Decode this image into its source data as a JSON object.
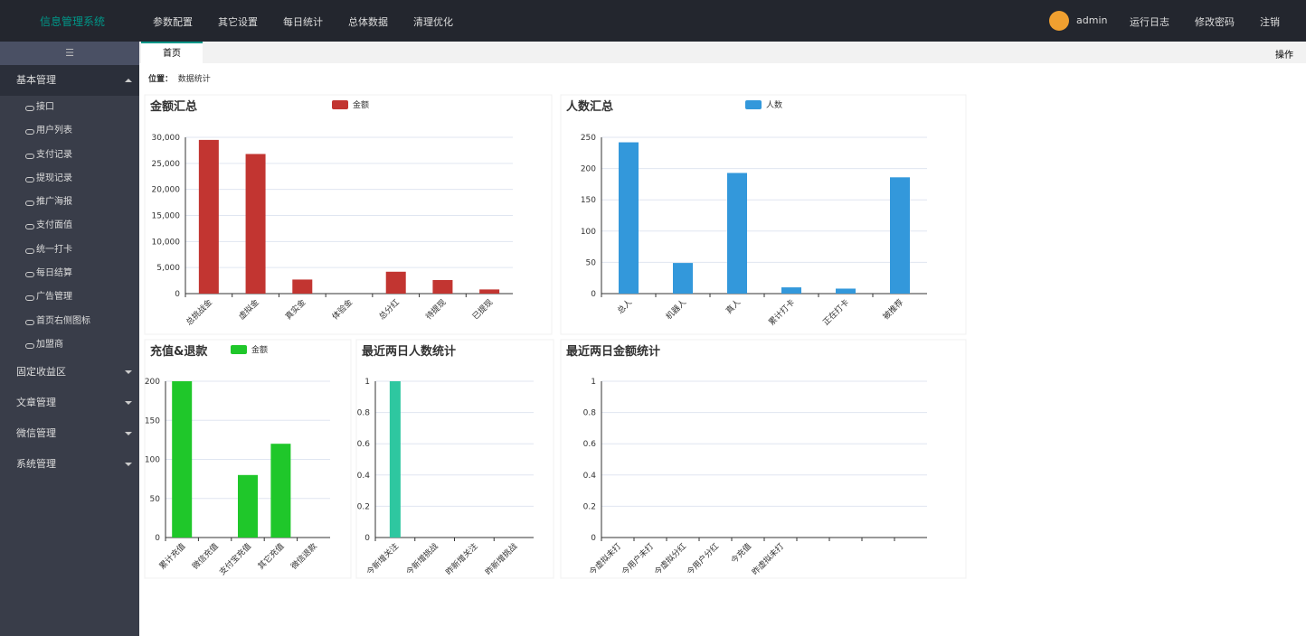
{
  "header": {
    "title": "信息管理系统",
    "nav": [
      "参数配置",
      "其它设置",
      "每日统计",
      "总体数据",
      "清理优化"
    ],
    "user": "admin",
    "links": [
      "运行日志",
      "修改密码",
      "注销"
    ]
  },
  "sidebar": {
    "groups": [
      {
        "title": "基本管理",
        "items": [
          "接口",
          "用户列表",
          "支付记录",
          "提现记录",
          "推广海报",
          "支付面值",
          "统一打卡",
          "每日结算",
          "广告管理",
          "首页右侧图标",
          "加盟商"
        ]
      },
      {
        "title": "固定收益区"
      },
      {
        "title": "文章管理"
      },
      {
        "title": "微信管理"
      },
      {
        "title": "系统管理"
      }
    ]
  },
  "tabs": {
    "active": "首页",
    "action": "操作"
  },
  "breadcrumb": {
    "label": "位置：",
    "current": "数据统计"
  },
  "chart_data": [
    {
      "type": "bar",
      "title": "金额汇总",
      "categories": [
        "总挑战金",
        "虚拟金",
        "真实金",
        "体验金",
        "总分红",
        "待提现",
        "已提现"
      ],
      "series": [
        {
          "name": "金额",
          "color": "#c23531",
          "values": [
            29500,
            26800,
            2700,
            0,
            4200,
            2600,
            800
          ]
        }
      ],
      "ylim": [
        0,
        30000
      ],
      "yticks": [
        0,
        {
          "value": 5000,
          "label": "5,000"
        },
        {
          "value": 10000,
          "label": "10,000"
        },
        {
          "value": 15000,
          "label": "15,000"
        },
        {
          "value": 20000,
          "label": "20,000"
        },
        {
          "value": 25000,
          "label": "25,000"
        },
        {
          "value": 30000,
          "label": "30,000"
        }
      ],
      "grid": true
    },
    {
      "type": "bar",
      "title": "人数汇总",
      "categories": [
        "总人",
        "机器人",
        "真人",
        "累计打卡",
        "正在打卡",
        "被推荐"
      ],
      "series": [
        {
          "name": "人数",
          "color": "#3398db",
          "values": [
            242,
            49,
            193,
            10,
            8,
            186
          ]
        }
      ],
      "ylim": [
        0,
        250
      ],
      "yticks": [
        0,
        50,
        100,
        150,
        200,
        250
      ],
      "grid": true
    },
    {
      "type": "bar",
      "title": "充值&退款",
      "categories": [
        "累计充值",
        "微信充值",
        "支付宝充值",
        "其它充值",
        "微信退款"
      ],
      "series": [
        {
          "name": "金额",
          "color": "#1fc72a",
          "values": [
            200,
            0,
            80,
            120,
            0
          ]
        }
      ],
      "ylim": [
        0,
        200
      ],
      "yticks": [
        0,
        50,
        100,
        150,
        200
      ],
      "grid": true
    },
    {
      "type": "bar",
      "title": "最近两日人数统计",
      "categories": [
        "今新增关注",
        "今新增挑战",
        "昨新增关注",
        "昨新增挑战"
      ],
      "values": [
        1,
        0,
        0,
        0
      ],
      "color": "#2ec7a0",
      "ylim": [
        0,
        1
      ],
      "yticks": [
        0,
        0.2,
        0.4,
        0.6,
        0.8,
        1
      ],
      "grid": true
    },
    {
      "type": "bar",
      "title": "最近两日金额统计",
      "categories": [
        "今虚拟未打",
        "今用户未打",
        "今虚拟分红",
        "今用户分红",
        "今充值",
        "昨虚拟未打",
        null,
        null,
        null,
        null
      ],
      "values": [
        0,
        0,
        0,
        0,
        0,
        0,
        0,
        0,
        0,
        0
      ],
      "color": "#c23531",
      "ylim": [
        0,
        1
      ],
      "yticks": [
        0,
        0.2,
        0.4,
        0.6,
        0.8,
        1
      ],
      "grid": true
    }
  ]
}
